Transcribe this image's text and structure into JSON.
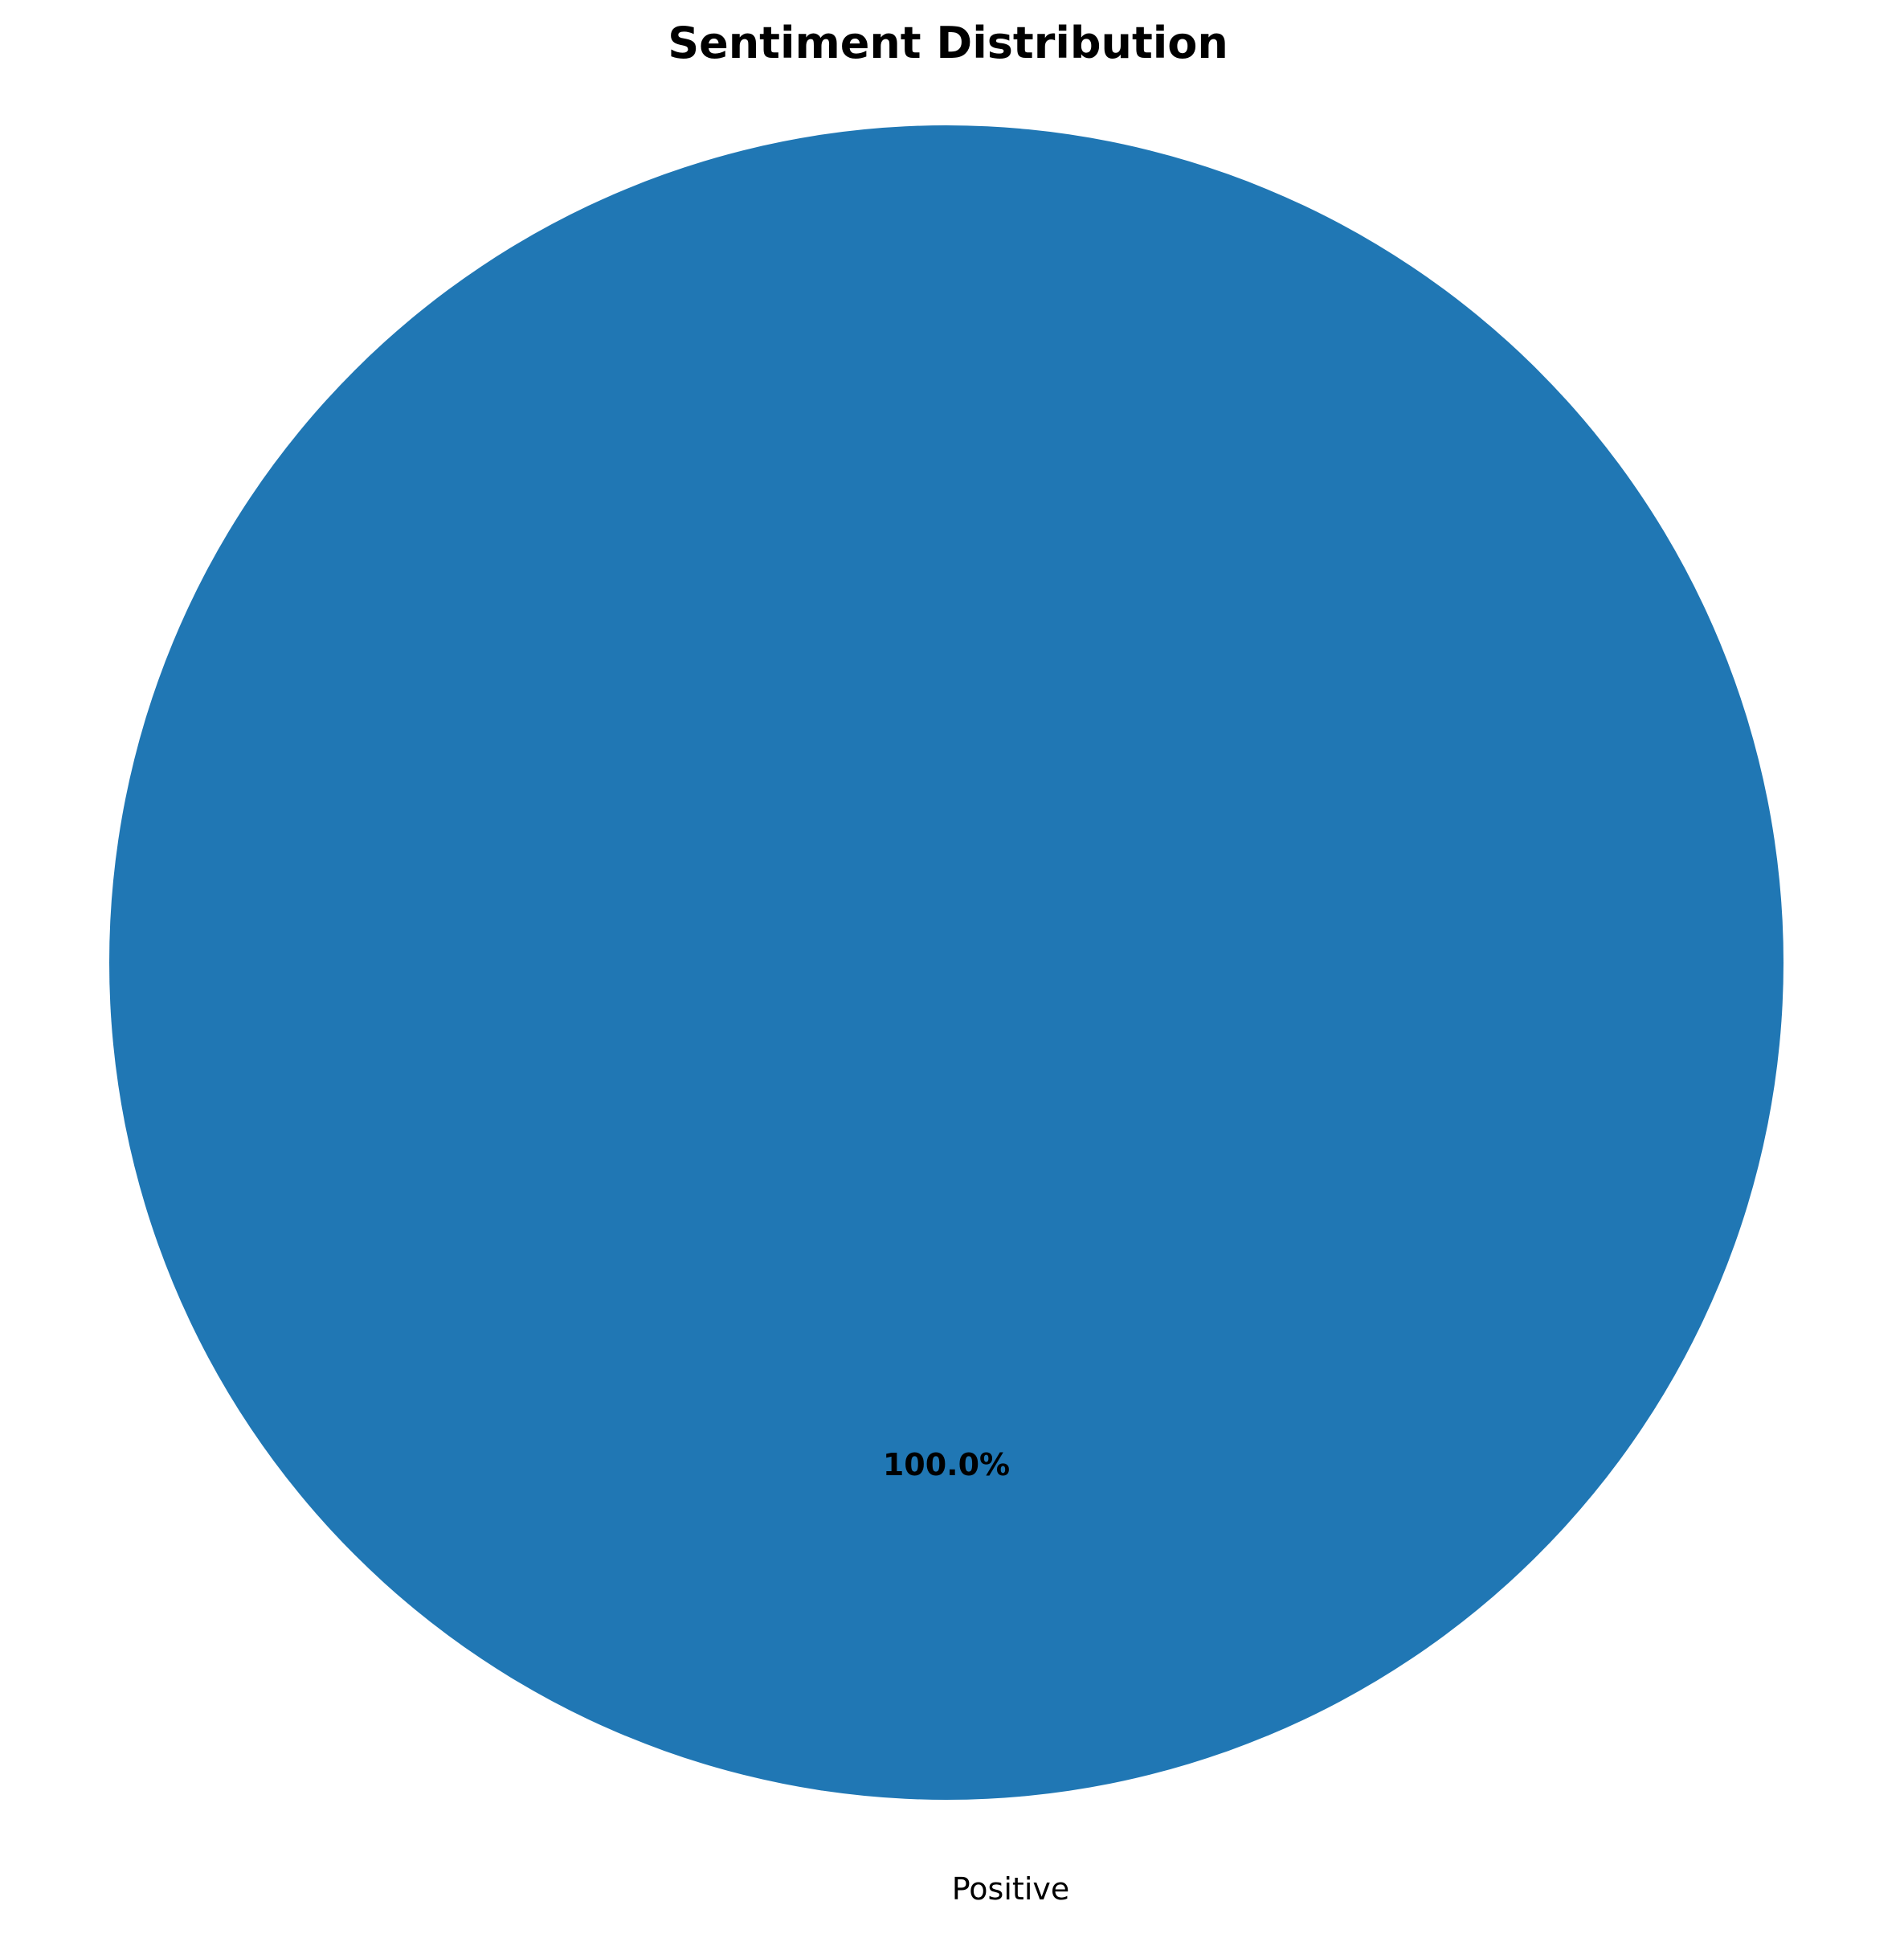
{
  "chart_data": {
    "type": "pie",
    "title": "Sentiment Distribution",
    "slices": [
      {
        "label": "Positive",
        "value": 100.0,
        "percent_label": "100.0%",
        "color": "#2077b4"
      }
    ],
    "legend": "none"
  }
}
